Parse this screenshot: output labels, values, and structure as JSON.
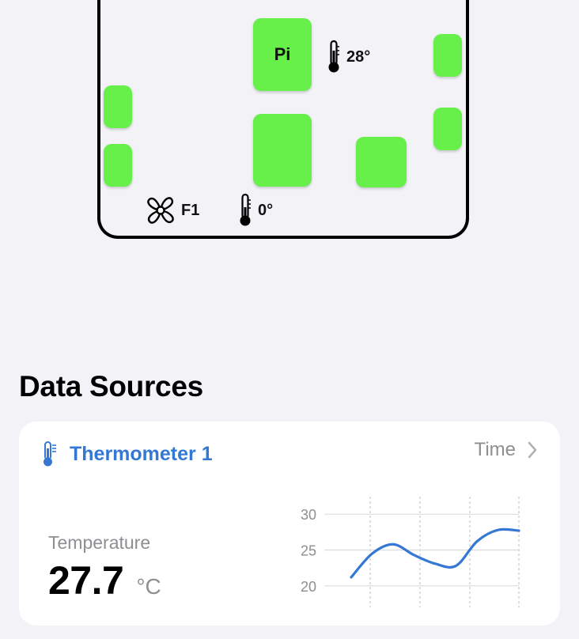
{
  "floor_plan": {
    "blocks": [
      {
        "name": "pi-block",
        "label": "Pi"
      },
      {
        "name": "block-left-upper",
        "label": ""
      },
      {
        "name": "block-left-lower",
        "label": ""
      },
      {
        "name": "block-center-large",
        "label": ""
      },
      {
        "name": "block-center-small",
        "label": ""
      },
      {
        "name": "block-right-upper",
        "label": ""
      },
      {
        "name": "block-right-lower",
        "label": ""
      }
    ],
    "readings": {
      "pi_temp": "28°",
      "fan": "F1",
      "floor_temp": "0°"
    },
    "colors": {
      "block": "#67f04a",
      "outline": "#000000"
    }
  },
  "data_sources": {
    "title": "Data Sources",
    "card": {
      "icon": "thermometer-icon",
      "title": "Thermometer 1",
      "time_label": "Time",
      "metric_label": "Temperature",
      "value": "27.7",
      "unit": "°C",
      "accent_color": "#3478d4"
    }
  },
  "chart_data": {
    "type": "line",
    "title": "",
    "xlabel": "",
    "ylabel": "",
    "ylim": [
      17,
      33
    ],
    "yticks": [
      20,
      25,
      30
    ],
    "x": [
      0,
      1,
      2,
      3,
      4,
      5,
      6,
      7,
      8
    ],
    "series": [
      {
        "values": [
          21.2,
          24.5,
          25.8,
          24.3,
          23.1,
          22.8,
          26.2,
          27.8,
          27.7
        ]
      }
    ],
    "grid": true,
    "line_color": "#3478d4"
  }
}
